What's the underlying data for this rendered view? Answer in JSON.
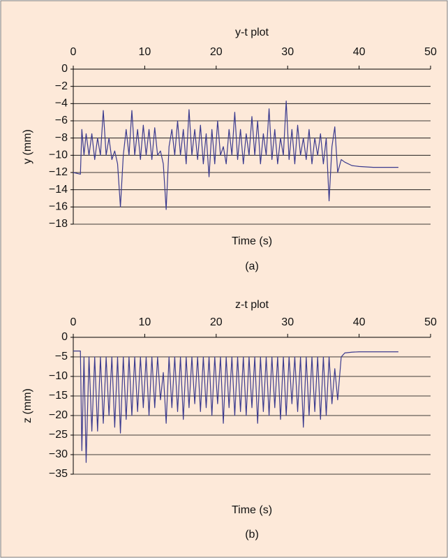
{
  "chart_data": [
    {
      "type": "line",
      "title": "y-t plot",
      "xlabel": "Time (s)",
      "ylabel": "y (mm)",
      "caption": "(a)",
      "xlim": [
        0,
        50
      ],
      "xticks": [
        0,
        10,
        20,
        30,
        40,
        50
      ],
      "ylim": [
        -18,
        0
      ],
      "yticks": [
        0,
        {
          "value": -2,
          "label": "−2"
        },
        {
          "value": -4,
          "label": "−4"
        },
        {
          "value": -6,
          "label": "−6"
        },
        {
          "value": -8,
          "label": "−8"
        },
        {
          "value": -10,
          "label": "−10"
        },
        {
          "value": -12,
          "label": "−12"
        },
        {
          "value": -14,
          "label": "−14"
        },
        {
          "value": -16,
          "label": "−16"
        },
        {
          "value": -18,
          "label": "−18"
        }
      ],
      "grid": true,
      "color": "#3a3a8e",
      "x": [
        0,
        1,
        1.2,
        1.5,
        1.8,
        2.2,
        2.6,
        3,
        3.4,
        3.8,
        4.2,
        4.6,
        5,
        5.4,
        5.8,
        6.2,
        6.6,
        7,
        7.4,
        7.8,
        8.2,
        8.6,
        9,
        9.4,
        9.8,
        10.2,
        10.6,
        11,
        11.4,
        11.8,
        12.2,
        12.6,
        13,
        13.4,
        13.8,
        14.2,
        14.6,
        15,
        15.4,
        15.8,
        16.2,
        16.6,
        17,
        17.4,
        17.8,
        18.2,
        18.6,
        19,
        19.4,
        19.8,
        20.2,
        20.6,
        21,
        21.4,
        21.8,
        22.2,
        22.6,
        23,
        23.4,
        23.8,
        24.2,
        24.6,
        25,
        25.4,
        25.8,
        26.2,
        26.6,
        27,
        27.4,
        27.8,
        28.2,
        28.6,
        29,
        29.4,
        29.8,
        30.2,
        30.6,
        31,
        31.4,
        31.8,
        32.2,
        32.6,
        33,
        33.4,
        33.8,
        34.2,
        34.6,
        35,
        35.4,
        35.8,
        36.2,
        36.6,
        37,
        37.5,
        38,
        39,
        40,
        42,
        44,
        45.5
      ],
      "values": [
        -12,
        -12.2,
        -7,
        -10,
        -7.5,
        -10,
        -7.5,
        -10.5,
        -8,
        -10,
        -4.8,
        -10,
        -8,
        -10.5,
        -9.5,
        -11,
        -16,
        -10,
        -7,
        -10,
        -4.8,
        -10,
        -7,
        -10.5,
        -6.5,
        -10,
        -7,
        -10.5,
        -6.8,
        -10,
        -9.5,
        -11,
        -16.3,
        -9,
        -7,
        -10,
        -6,
        -10,
        -7,
        -11,
        -4.7,
        -10,
        -7,
        -10.5,
        -6.5,
        -11,
        -7.5,
        -12.5,
        -7,
        -11,
        -6,
        -10,
        -9,
        -11,
        -7,
        -10,
        -5,
        -10.5,
        -7,
        -11,
        -7.5,
        -10,
        -5.5,
        -10,
        -6,
        -11,
        -7.5,
        -10,
        -4.6,
        -10.5,
        -7,
        -11,
        -8,
        -10,
        -3.7,
        -10.5,
        -7,
        -11,
        -6.5,
        -10,
        -8,
        -10.5,
        -7,
        -11,
        -8,
        -10,
        -7.5,
        -11,
        -8,
        -15.3,
        -9,
        -6.7,
        -12,
        -10.5,
        -10.8,
        -11.2,
        -11.3,
        -11.4,
        -11.4,
        -11.4
      ]
    },
    {
      "type": "line",
      "title": "z-t plot",
      "xlabel": "Time (s)",
      "ylabel": "z (mm)",
      "caption": "(b)",
      "xlim": [
        0,
        50
      ],
      "xticks": [
        0,
        10,
        20,
        30,
        40,
        50
      ],
      "ylim": [
        -35,
        0
      ],
      "yticks": [
        0,
        {
          "value": -5,
          "label": "−5"
        },
        {
          "value": -10,
          "label": "−10"
        },
        {
          "value": -15,
          "label": "−15"
        },
        {
          "value": -20,
          "label": "−20"
        },
        {
          "value": -25,
          "label": "−25"
        },
        {
          "value": -30,
          "label": "−30"
        },
        {
          "value": -35,
          "label": "−35"
        }
      ],
      "grid": true,
      "color": "#3a3a8e",
      "x": [
        0,
        1,
        1.2,
        1.5,
        1.8,
        2.2,
        2.6,
        3,
        3.4,
        3.8,
        4.2,
        4.6,
        5,
        5.4,
        5.8,
        6.2,
        6.6,
        7,
        7.4,
        7.8,
        8.2,
        8.6,
        9,
        9.4,
        9.8,
        10.2,
        10.6,
        11,
        11.4,
        11.8,
        12.2,
        12.6,
        13,
        13.4,
        13.8,
        14.2,
        14.6,
        15,
        15.4,
        15.8,
        16.2,
        16.6,
        17,
        17.4,
        17.8,
        18.2,
        18.6,
        19,
        19.4,
        19.8,
        20.2,
        20.6,
        21,
        21.4,
        21.8,
        22.2,
        22.6,
        23,
        23.4,
        23.8,
        24.2,
        24.6,
        25,
        25.4,
        25.8,
        26.2,
        26.6,
        27,
        27.4,
        27.8,
        28.2,
        28.6,
        29,
        29.4,
        29.8,
        30.2,
        30.6,
        31,
        31.4,
        31.8,
        32.2,
        32.6,
        33,
        33.4,
        33.8,
        34.2,
        34.6,
        35,
        35.4,
        35.8,
        36.2,
        36.6,
        37,
        37.5,
        38,
        39,
        40,
        42,
        44,
        45.5
      ],
      "values": [
        -3.5,
        -3.5,
        -29,
        -5,
        -32,
        -5,
        -24,
        -5,
        -24,
        -5,
        -22,
        -5,
        -20,
        -5,
        -23,
        -5,
        -24.5,
        -5,
        -21,
        -5,
        -20,
        -5,
        -19,
        -5,
        -18,
        -5,
        -20,
        -5,
        -18,
        -5,
        -16,
        -9,
        -22,
        -5,
        -18,
        -5,
        -19,
        -5,
        -21,
        -5,
        -18,
        -5,
        -17,
        -5,
        -19,
        -5,
        -18,
        -5,
        -20,
        -5,
        -17,
        -5,
        -22,
        -5,
        -18,
        -5,
        -20,
        -5,
        -19,
        -5,
        -20,
        -5,
        -18,
        -5,
        -22,
        -5,
        -19,
        -5,
        -20,
        -5,
        -18,
        -5,
        -21,
        -5,
        -20,
        -5,
        -17,
        -5,
        -19,
        -5,
        -23,
        -5,
        -20,
        -5,
        -19,
        -5,
        -21,
        -5,
        -20,
        -5,
        -17,
        -8,
        -16,
        -5,
        -4,
        -3.8,
        -3.7,
        -3.7,
        -3.7,
        -3.7
      ]
    }
  ]
}
